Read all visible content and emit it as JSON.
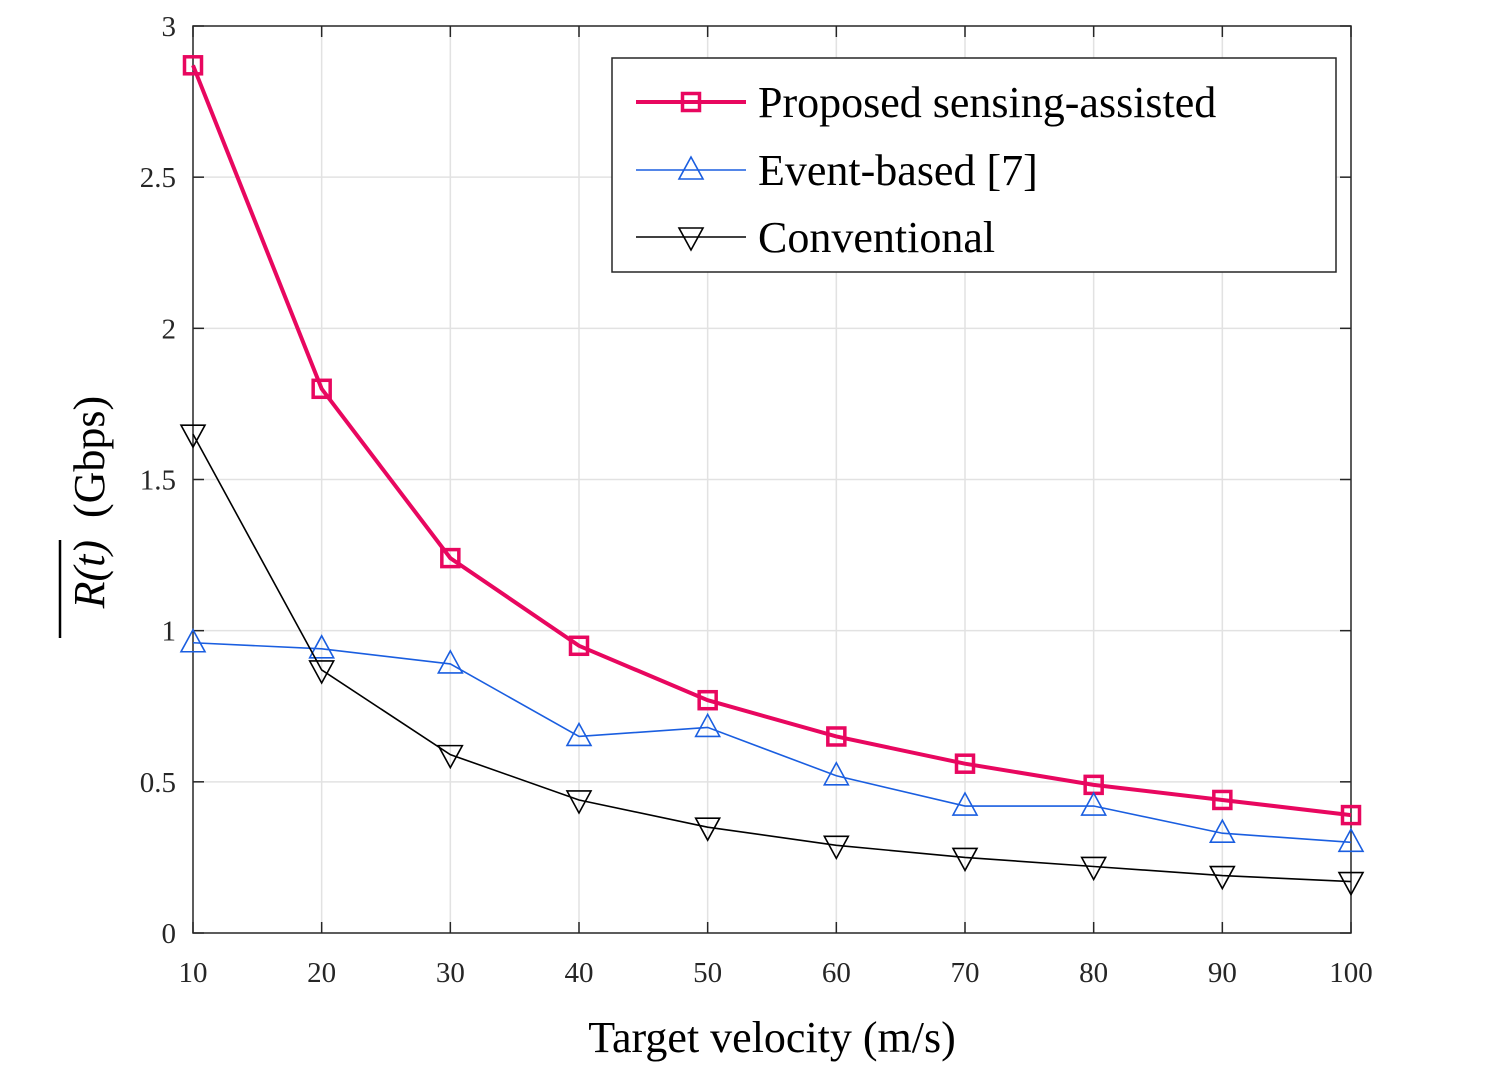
{
  "chart_data": {
    "type": "line",
    "title": "",
    "xlabel": "Target velocity (m/s)",
    "ylabel_overlined": "R(t)",
    "ylabel_unit": "(Gbps)",
    "x": [
      10,
      20,
      30,
      40,
      50,
      60,
      70,
      80,
      90,
      100
    ],
    "xlim": [
      10,
      100
    ],
    "ylim": [
      0,
      3
    ],
    "xticks": [
      10,
      20,
      30,
      40,
      50,
      60,
      70,
      80,
      90,
      100
    ],
    "yticks": [
      0,
      0.5,
      1,
      1.5,
      2,
      2.5,
      3
    ],
    "xtick_labels": [
      "10",
      "20",
      "30",
      "40",
      "50",
      "60",
      "70",
      "80",
      "90",
      "100"
    ],
    "ytick_labels": [
      "0",
      "0.5",
      "1",
      "1.5",
      "2",
      "2.5",
      "3"
    ],
    "grid": true,
    "legend_position": "top-right",
    "series": [
      {
        "name": "Proposed sensing-assisted",
        "color": "#e8075f",
        "marker": "square",
        "values": [
          2.87,
          1.8,
          1.24,
          0.95,
          0.77,
          0.65,
          0.56,
          0.49,
          0.44,
          0.39
        ]
      },
      {
        "name": "Event-based [7]",
        "color": "#1a5ee0",
        "marker": "triangle-up",
        "values": [
          0.96,
          0.94,
          0.89,
          0.65,
          0.68,
          0.52,
          0.42,
          0.42,
          0.33,
          0.3
        ]
      },
      {
        "name": "Conventional",
        "color": "#000000",
        "marker": "triangle-down",
        "values": [
          1.65,
          0.87,
          0.59,
          0.44,
          0.35,
          0.29,
          0.25,
          0.22,
          0.19,
          0.17
        ]
      }
    ]
  }
}
